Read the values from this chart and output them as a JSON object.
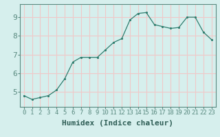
{
  "x": [
    0,
    1,
    2,
    3,
    4,
    5,
    6,
    7,
    8,
    9,
    10,
    11,
    12,
    13,
    14,
    15,
    16,
    17,
    18,
    19,
    20,
    21,
    22,
    23
  ],
  "y": [
    4.8,
    4.6,
    4.7,
    4.8,
    5.1,
    5.7,
    6.6,
    6.85,
    6.85,
    6.85,
    7.25,
    7.65,
    7.85,
    8.85,
    9.2,
    9.25,
    8.6,
    8.5,
    8.4,
    8.45,
    9.0,
    9.0,
    8.2,
    7.8
  ],
  "xlim": [
    -0.5,
    23.5
  ],
  "ylim": [
    4.2,
    9.7
  ],
  "yticks": [
    5,
    6,
    7,
    8,
    9
  ],
  "xticks": [
    0,
    1,
    2,
    3,
    4,
    5,
    6,
    7,
    8,
    9,
    10,
    11,
    12,
    13,
    14,
    15,
    16,
    17,
    18,
    19,
    20,
    21,
    22,
    23
  ],
  "xlabel": "Humidex (Indice chaleur)",
  "line_color": "#2e7d6e",
  "marker": ".",
  "bg_color": "#d6efed",
  "grid_color": "#f0c8c8",
  "spine_color": "#5a8a80",
  "xlabel_fontsize": 8,
  "ytick_fontsize": 8,
  "xtick_fontsize": 6.5
}
